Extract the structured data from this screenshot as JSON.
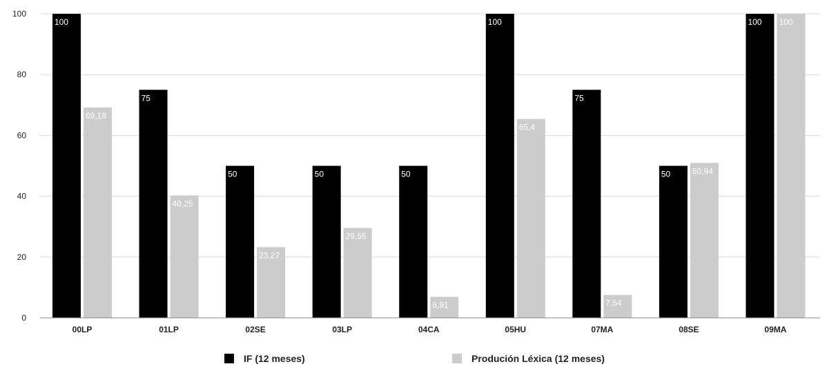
{
  "chart_data": {
    "type": "bar",
    "categories": [
      "00LP",
      "01LP",
      "02SE",
      "03LP",
      "04CA",
      "05HU",
      "07MA",
      "08SE",
      "09MA"
    ],
    "series": [
      {
        "name": "IF (12 meses)",
        "color": "#000000",
        "label_color": "#ffffff",
        "values": [
          100,
          75,
          50,
          50,
          50,
          100,
          75,
          50,
          100
        ],
        "labels": [
          "100",
          "75",
          "50",
          "50",
          "50",
          "100",
          "75",
          "50",
          "100"
        ]
      },
      {
        "name": "Produción Léxica (12 meses)",
        "color": "#cccccc",
        "label_color": "#ffffff",
        "values": [
          69.18,
          40.25,
          23.27,
          29.55,
          6.91,
          65.4,
          7.54,
          50.94,
          100
        ],
        "labels": [
          "69,18",
          "40,25",
          "23,27",
          "29,55",
          "6,91",
          "65,4",
          "7,54",
          "50,94",
          "100"
        ]
      }
    ],
    "ylim": [
      0,
      100
    ],
    "yticks": [
      "0",
      "20",
      "40",
      "60",
      "80",
      "100"
    ],
    "grid": true,
    "legend_position": "bottom",
    "title": "",
    "xlabel": "",
    "ylabel": ""
  }
}
